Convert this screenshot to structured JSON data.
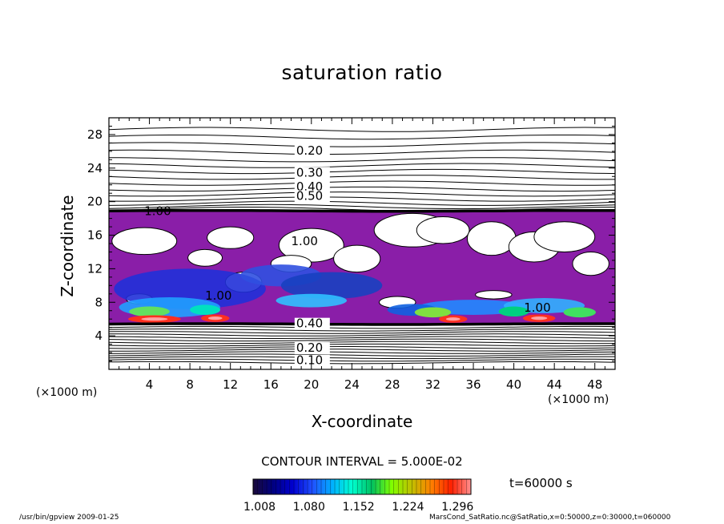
{
  "chart_data": {
    "type": "heatmap",
    "title": "saturation ratio",
    "xlabel": "X-coordinate",
    "ylabel": "Z-coordinate",
    "x_unit_left": "(×1000 m)",
    "x_unit_right": "(×1000 m)",
    "xlim": [
      0,
      50
    ],
    "ylim": [
      0,
      30
    ],
    "x_ticks": [
      "4",
      "8",
      "12",
      "16",
      "20",
      "24",
      "28",
      "32",
      "36",
      "40",
      "44",
      "48"
    ],
    "y_ticks": [
      "4",
      "8",
      "12",
      "16",
      "20",
      "24",
      "28"
    ],
    "contour_labels": [
      "0.20",
      "0.30",
      "0.40",
      "0.50",
      "1.00",
      "1.00",
      "1.00",
      "1.00",
      "0.40",
      "0.20",
      "0.10"
    ],
    "contour_interval": "CONTOUR INTERVAL = 5.000E-02",
    "colorbar": {
      "ticks": [
        "1.008",
        "1.080",
        "1.152",
        "1.224",
        "1.296"
      ],
      "range": [
        1.008,
        1.296
      ],
      "colors": [
        "#1a0a3a",
        "#000080",
        "#0000d0",
        "#2050ff",
        "#00b0ff",
        "#00ffd0",
        "#00c060",
        "#80ff00",
        "#c0c000",
        "#ff8000",
        "#ff2000",
        "#ff9090"
      ]
    },
    "time_label": "t=60000 s",
    "footer_left": "/usr/bin/gpview  2009-01-25",
    "footer_right": "MarsCond_SatRatio.nc@SatRatio,x=0:50000,z=0:30000,t=060000",
    "grid": false
  }
}
